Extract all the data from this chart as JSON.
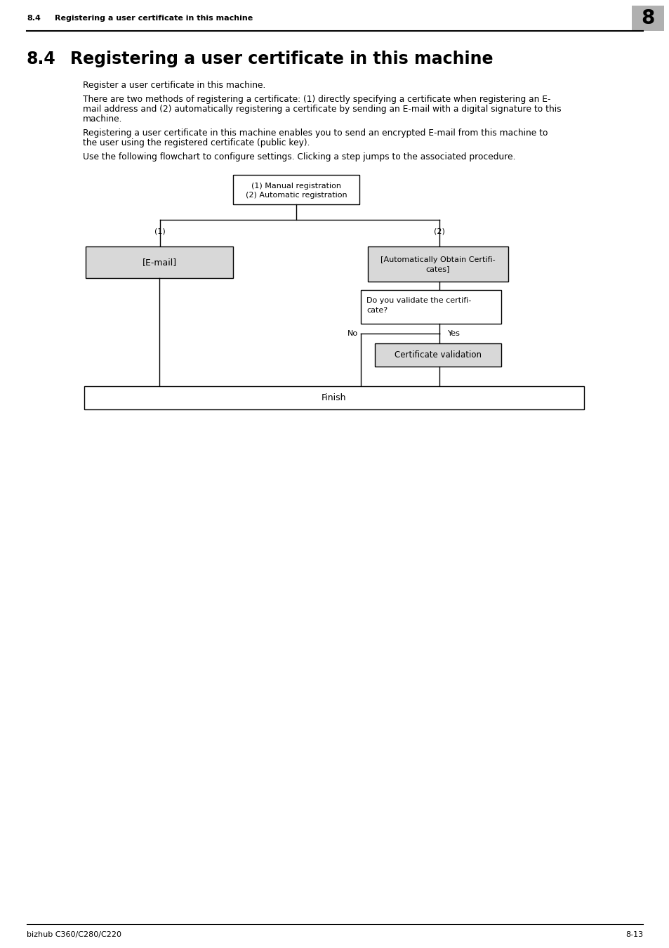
{
  "page_title_num": "8.4",
  "page_title_text": "Registering a user certificate in this machine",
  "page_number": "8",
  "section_number": "8.4",
  "section_title": "Registering a user certificate in this machine",
  "para1": "Register a user certificate in this machine.",
  "para2_lines": [
    "There are two methods of registering a certificate: (1) directly specifying a certificate when registering an E-",
    "mail address and (2) automatically registering a certificate by sending an E-mail with a digital signature to this",
    "machine."
  ],
  "para3_lines": [
    "Registering a user certificate in this machine enables you to send an encrypted E-mail from this machine to",
    "the user using the registered certificate (public key)."
  ],
  "para4": "Use the following flowchart to configure settings. Clicking a step jumps to the associated procedure.",
  "footer_left": "bizhub C360/C280/C220",
  "footer_right": "8-13",
  "bg_color": "#ffffff",
  "text_color": "#000000",
  "box_fill_gray": "#d8d8d8",
  "box_fill_white": "#ffffff"
}
